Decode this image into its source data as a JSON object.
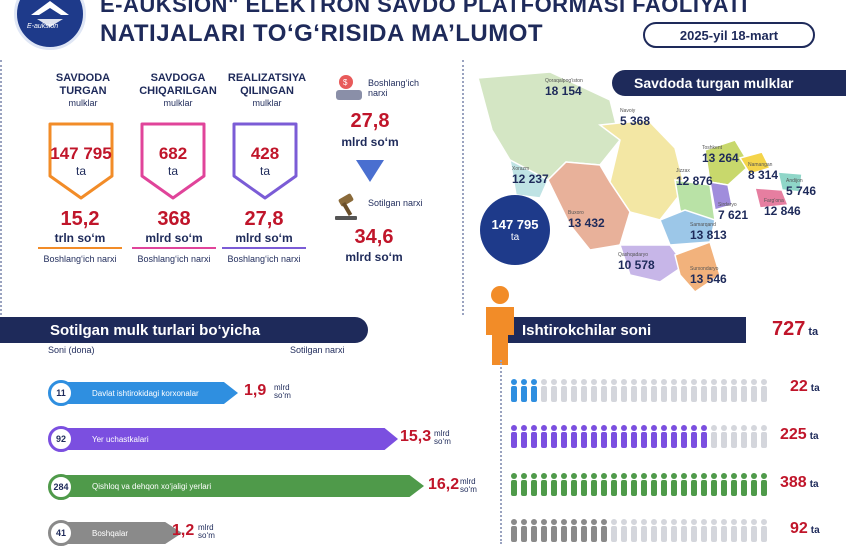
{
  "header": {
    "title_line1": "E-AUKSION\" ELEKTRON SAVDO PLATFORMASI FAOLIYATI",
    "title_line2": "NATIJALARI TO‘G‘RISIDA MA’LUMOT",
    "date": "2025-yil 18-mart",
    "logo_text": "E-auksion"
  },
  "columns": [
    {
      "head": "SAVDODA TURGAN",
      "sub": "mulklar",
      "count": "147 795",
      "count_unit": "ta",
      "value": "15,2",
      "value_unit": "trln so‘m",
      "foot": "Boshlang‘ich narxi",
      "color": "#f28c28"
    },
    {
      "head": "SAVDOGA CHIQARILGAN",
      "sub": "mulklar",
      "count": "682",
      "count_unit": "ta",
      "value": "368",
      "value_unit": "mlrd so‘m",
      "foot": "Boshlang‘ich narxi",
      "color": "#e0449a"
    },
    {
      "head": "REALIZATSIYA QILINGAN",
      "sub": "mulklar",
      "count": "428",
      "count_unit": "ta",
      "value": "27,8",
      "value_unit": "mlrd so‘m",
      "foot": "Boshlang‘ich narxi",
      "color": "#7b5cd6"
    }
  ],
  "price": {
    "start_label": "Boshlang‘ich narxi",
    "start_value": "27,8",
    "start_unit": "mlrd so‘m",
    "sold_label": "Sotilgan narxi",
    "sold_value": "34,6",
    "sold_unit": "mlrd so‘m"
  },
  "map": {
    "title": "Savdoda turgan mulklar",
    "total": "147 795",
    "total_unit": "ta",
    "regions": [
      {
        "name": "Qoraqalpog‘iston",
        "value": "18 154"
      },
      {
        "name": "Navoiy",
        "value": "5 368"
      },
      {
        "name": "Xorazm",
        "value": "12 237"
      },
      {
        "name": "Buxoro",
        "value": "13 432"
      },
      {
        "name": "Jizzax",
        "value": "12 876"
      },
      {
        "name": "Toshkent",
        "value": "13 264"
      },
      {
        "name": "Namangan",
        "value": "8 314"
      },
      {
        "name": "Andijon",
        "value": "5 746"
      },
      {
        "name": "Farg‘ona",
        "value": "12 846"
      },
      {
        "name": "Sirdaryo",
        "value": "7 621"
      },
      {
        "name": "Samarqand",
        "value": "13 813"
      },
      {
        "name": "Qashqadaryo",
        "value": "10 578"
      },
      {
        "name": "Surxondaryo",
        "value": "13 546"
      }
    ]
  },
  "types": {
    "title": "Sotilgan mulk turlari bo‘yicha",
    "col_left": "Soni (dona)",
    "col_right": "Sotilgan narxi",
    "rows": [
      {
        "count": "11",
        "label": "Davlat ishtirokidagi korxonalar",
        "value": "1,9",
        "unit": "mlrd so‘m",
        "color": "#2f8fe0"
      },
      {
        "count": "92",
        "label": "Yer uchastkalari",
        "value": "15,3",
        "unit": "mlrd so‘m",
        "color": "#7b4fe0"
      },
      {
        "count": "284",
        "label": "Qishloq va dehqon xo‘jaligi yerlari",
        "value": "16,2",
        "unit": "mlrd so‘m",
        "color": "#4f9a4a"
      },
      {
        "count": "41",
        "label": "Boshqalar",
        "value": "1,2",
        "unit": "mlrd so‘m",
        "color": "#8a8a8a"
      }
    ]
  },
  "participants": {
    "title": "Ishtirokchilar soni",
    "total": "727",
    "total_unit": "ta",
    "rows": [
      {
        "value": "22",
        "unit": "ta",
        "color": "#2f8fe0"
      },
      {
        "value": "225",
        "unit": "ta",
        "color": "#7b4fe0"
      },
      {
        "value": "388",
        "unit": "ta",
        "color": "#4f9a4a"
      },
      {
        "value": "92",
        "unit": "ta",
        "color": "#8a8a8a"
      }
    ]
  },
  "chart_data": {
    "type": "bar",
    "categories": [
      "Davlat ishtirokidagi korxonalar",
      "Yer uchastkalari",
      "Qishloq va dehqon xo‘jaligi yerlari",
      "Boshqalar"
    ],
    "series": [
      {
        "name": "Soni (dona)",
        "values": [
          11,
          92,
          284,
          41
        ]
      },
      {
        "name": "Sotilgan narxi",
        "values": [
          1.9,
          15.3,
          16.2,
          1.2
        ]
      }
    ],
    "participants": [
      22,
      225,
      388,
      92
    ],
    "participant_fill": [
      0.12,
      0.75,
      1.0,
      0.38
    ]
  }
}
